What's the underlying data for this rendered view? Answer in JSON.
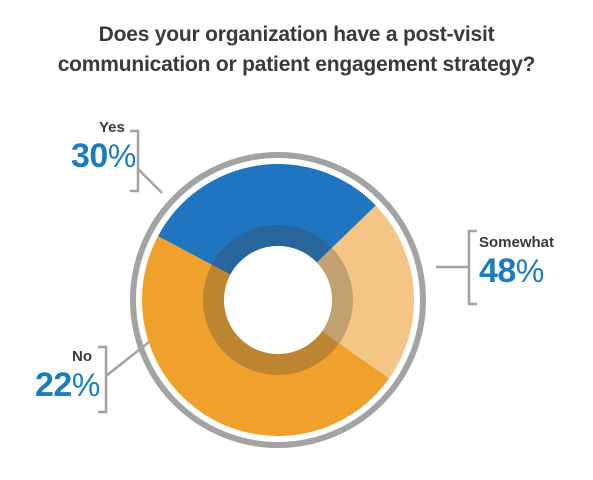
{
  "chart_data": {
    "type": "pie",
    "title_lines": [
      "Does your organization have a post-visit",
      "communication or patient engagement strategy?"
    ],
    "categories": [
      "Yes",
      "Somewhat",
      "No"
    ],
    "values": [
      30,
      48,
      22
    ],
    "unit": "%",
    "colors": {
      "Yes": "#1f75bf",
      "Somewhat": "#f0a12b",
      "No": "#f4c686"
    },
    "label_color": "#1b7cc0",
    "ring_color": "#a3a3a3"
  }
}
